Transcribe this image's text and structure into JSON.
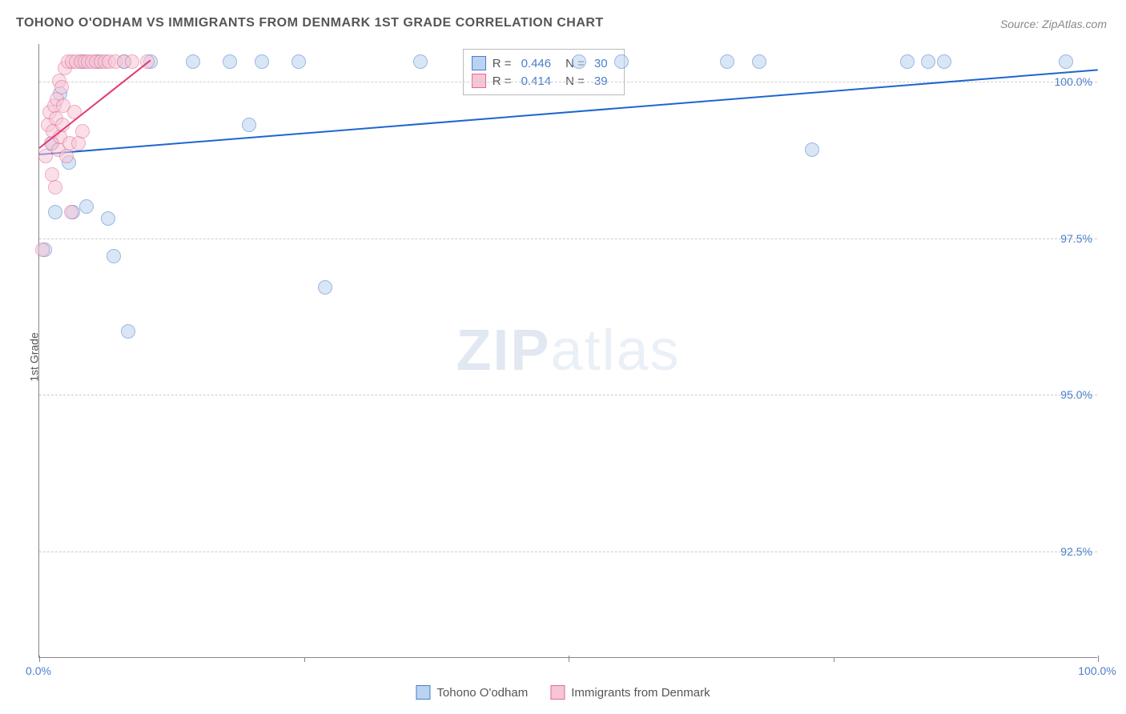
{
  "title": "TOHONO O'ODHAM VS IMMIGRANTS FROM DENMARK 1ST GRADE CORRELATION CHART",
  "source_prefix": "Source: ",
  "source": "ZipAtlas.com",
  "y_axis_label": "1st Grade",
  "watermark_bold": "ZIP",
  "watermark_light": "atlas",
  "chart": {
    "type": "scatter",
    "background_color": "#ffffff",
    "grid_color": "#cccccc",
    "axis_color": "#888888",
    "tick_label_color": "#4a7ecb",
    "xlim": [
      0,
      100
    ],
    "ylim": [
      90.8,
      100.6
    ],
    "y_ticks": [
      {
        "v": 100.0,
        "label": "100.0%"
      },
      {
        "v": 97.5,
        "label": "97.5%"
      },
      {
        "v": 95.0,
        "label": "95.0%"
      },
      {
        "v": 92.5,
        "label": "92.5%"
      }
    ],
    "x_ticks_major": [
      0,
      50,
      100
    ],
    "x_ticks_minor": [
      25,
      75
    ],
    "x_tick_labels": [
      {
        "v": 0,
        "label": "0.0%"
      },
      {
        "v": 100,
        "label": "100.0%"
      }
    ],
    "marker_radius": 9,
    "marker_opacity": 0.55,
    "trend_line_width": 2,
    "series": [
      {
        "name": "Tohono O'odham",
        "fill": "#b9d3f0",
        "stroke": "#4a7ecb",
        "R": "0.446",
        "N": "30",
        "trend": {
          "x1": 0,
          "y1": 98.85,
          "x2": 100,
          "y2": 100.2,
          "color": "#1e66d0"
        },
        "points": [
          {
            "x": 0.5,
            "y": 97.3
          },
          {
            "x": 1.2,
            "y": 99.0
          },
          {
            "x": 1.5,
            "y": 97.9
          },
          {
            "x": 2.0,
            "y": 99.8
          },
          {
            "x": 2.8,
            "y": 98.7
          },
          {
            "x": 3.2,
            "y": 97.9
          },
          {
            "x": 4.0,
            "y": 100.3
          },
          {
            "x": 4.5,
            "y": 98.0
          },
          {
            "x": 5.5,
            "y": 100.3
          },
          {
            "x": 6.5,
            "y": 97.8
          },
          {
            "x": 7.0,
            "y": 97.2
          },
          {
            "x": 8.0,
            "y": 100.3
          },
          {
            "x": 8.4,
            "y": 96.0
          },
          {
            "x": 10.5,
            "y": 100.3
          },
          {
            "x": 14.5,
            "y": 100.3
          },
          {
            "x": 18.0,
            "y": 100.3
          },
          {
            "x": 19.8,
            "y": 99.3
          },
          {
            "x": 21.0,
            "y": 100.3
          },
          {
            "x": 24.5,
            "y": 100.3
          },
          {
            "x": 27.0,
            "y": 96.7
          },
          {
            "x": 36.0,
            "y": 100.3
          },
          {
            "x": 51.0,
            "y": 100.3
          },
          {
            "x": 55.0,
            "y": 100.3
          },
          {
            "x": 65.0,
            "y": 100.3
          },
          {
            "x": 68.0,
            "y": 100.3
          },
          {
            "x": 73.0,
            "y": 98.9
          },
          {
            "x": 82.0,
            "y": 100.3
          },
          {
            "x": 84.0,
            "y": 100.3
          },
          {
            "x": 85.5,
            "y": 100.3
          },
          {
            "x": 97.0,
            "y": 100.3
          }
        ]
      },
      {
        "name": "Immigrants from Denmark",
        "fill": "#f6c6d6",
        "stroke": "#e26a95",
        "R": "0.414",
        "N": "39",
        "trend": {
          "x1": 0,
          "y1": 98.95,
          "x2": 10.5,
          "y2": 100.35,
          "color": "#e03a75"
        },
        "points": [
          {
            "x": 0.3,
            "y": 97.3
          },
          {
            "x": 0.6,
            "y": 98.8
          },
          {
            "x": 0.8,
            "y": 99.3
          },
          {
            "x": 1.0,
            "y": 99.5
          },
          {
            "x": 1.1,
            "y": 99.0
          },
          {
            "x": 1.2,
            "y": 98.5
          },
          {
            "x": 1.3,
            "y": 99.2
          },
          {
            "x": 1.4,
            "y": 99.6
          },
          {
            "x": 1.5,
            "y": 98.3
          },
          {
            "x": 1.6,
            "y": 99.4
          },
          {
            "x": 1.7,
            "y": 99.7
          },
          {
            "x": 1.8,
            "y": 98.9
          },
          {
            "x": 1.9,
            "y": 100.0
          },
          {
            "x": 2.0,
            "y": 99.1
          },
          {
            "x": 2.1,
            "y": 99.9
          },
          {
            "x": 2.2,
            "y": 99.3
          },
          {
            "x": 2.3,
            "y": 99.6
          },
          {
            "x": 2.4,
            "y": 100.2
          },
          {
            "x": 2.6,
            "y": 98.8
          },
          {
            "x": 2.7,
            "y": 100.3
          },
          {
            "x": 2.9,
            "y": 99.0
          },
          {
            "x": 3.0,
            "y": 97.9
          },
          {
            "x": 3.1,
            "y": 100.3
          },
          {
            "x": 3.3,
            "y": 99.5
          },
          {
            "x": 3.5,
            "y": 100.3
          },
          {
            "x": 3.7,
            "y": 99.0
          },
          {
            "x": 3.9,
            "y": 100.3
          },
          {
            "x": 4.1,
            "y": 99.2
          },
          {
            "x": 4.3,
            "y": 100.3
          },
          {
            "x": 4.6,
            "y": 100.3
          },
          {
            "x": 5.0,
            "y": 100.3
          },
          {
            "x": 5.4,
            "y": 100.3
          },
          {
            "x": 5.8,
            "y": 100.3
          },
          {
            "x": 6.2,
            "y": 100.3
          },
          {
            "x": 6.6,
            "y": 100.3
          },
          {
            "x": 7.2,
            "y": 100.3
          },
          {
            "x": 8.0,
            "y": 100.3
          },
          {
            "x": 8.8,
            "y": 100.3
          },
          {
            "x": 10.2,
            "y": 100.3
          }
        ]
      }
    ]
  },
  "legend": {
    "top_box": {
      "R_label": "R =",
      "N_label": "N ="
    },
    "bottom": [
      {
        "swatch_fill": "#b9d3f0",
        "swatch_stroke": "#4a7ecb",
        "label": "Tohono O'odham"
      },
      {
        "swatch_fill": "#f6c6d6",
        "swatch_stroke": "#e26a95",
        "label": "Immigrants from Denmark"
      }
    ]
  }
}
